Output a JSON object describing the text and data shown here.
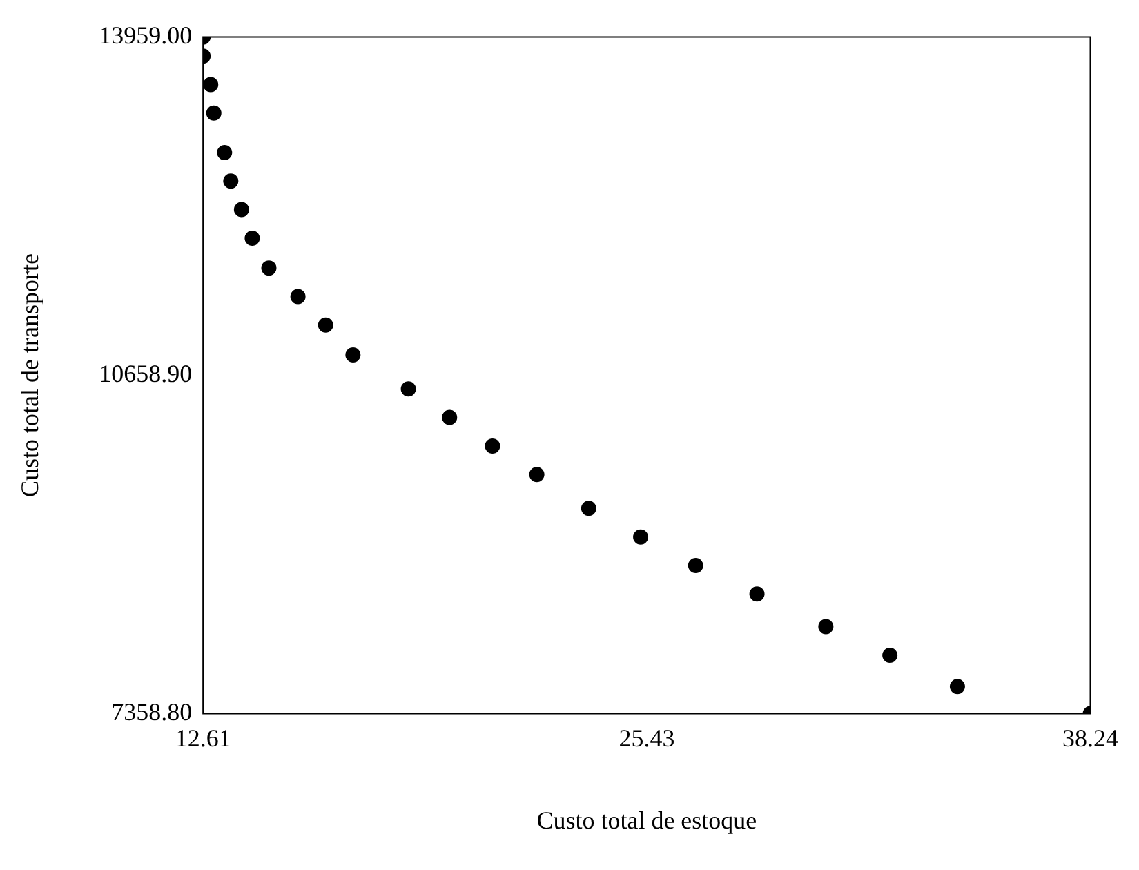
{
  "chart_data": {
    "type": "scatter",
    "xlabel": "Custo total de estoque",
    "ylabel": "Custo total de transporte",
    "x": [
      12.61,
      12.61,
      12.83,
      12.92,
      13.23,
      13.41,
      13.72,
      14.03,
      14.51,
      15.35,
      16.15,
      16.94,
      18.54,
      19.73,
      20.97,
      22.25,
      23.75,
      25.25,
      26.84,
      28.61,
      30.6,
      32.45,
      34.4,
      38.24
    ],
    "series": [
      {
        "color": "#000000",
        "values": [
          13959,
          13773,
          13495,
          13217,
          12832,
          12554,
          12276,
          11997,
          11706,
          11428,
          11149,
          10858,
          10527,
          10249,
          9970,
          9692,
          9361,
          9082,
          8804,
          8526,
          8208,
          7929,
          7624,
          7358.8
        ]
      }
    ],
    "xlim": [
      12.61,
      38.24
    ],
    "xticks": [
      {
        "value": 12.61,
        "label": "12.61"
      },
      {
        "value": 25.43,
        "label": "25.43"
      },
      {
        "value": 38.24,
        "label": "38.24"
      }
    ],
    "ylim": [
      7358.8,
      13959
    ],
    "yticks": [
      {
        "value": 7358.8,
        "label": "7358.80"
      },
      {
        "value": 10658.9,
        "label": "10658.90"
      },
      {
        "value": 13959,
        "label": "13959.00"
      }
    ],
    "marker": "circle",
    "grid": false,
    "legend": false
  }
}
